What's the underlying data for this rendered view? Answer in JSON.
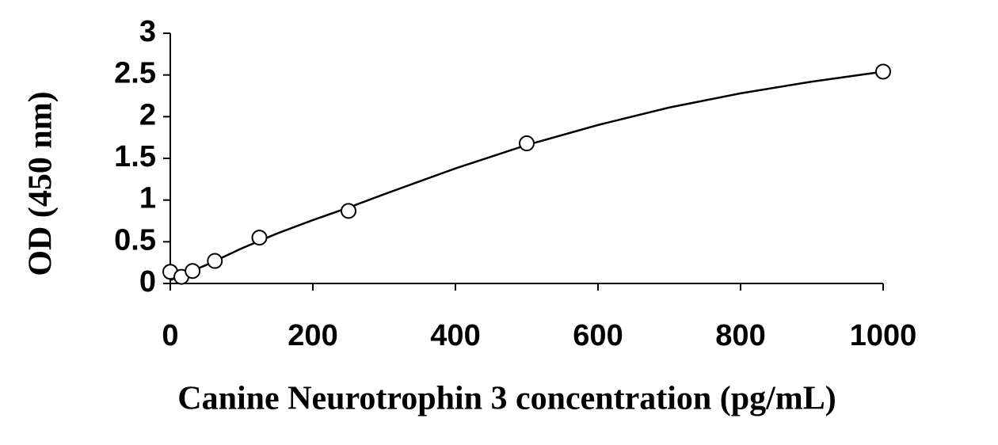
{
  "chart_data": {
    "type": "scatter",
    "x_label": "Canine Neurotrophin 3 concentration (pg/mL)",
    "y_label": "OD (450 nm)",
    "x": [
      0,
      15.6,
      31.25,
      62.5,
      125,
      250,
      500,
      1000
    ],
    "values": [
      0.14,
      0.08,
      0.15,
      0.27,
      0.55,
      0.87,
      1.68,
      2.54
    ],
    "fit_x": [
      0,
      50,
      100,
      150,
      200,
      250,
      300,
      400,
      500,
      600,
      700,
      800,
      900,
      1000
    ],
    "fit_values": [
      0.04,
      0.22,
      0.42,
      0.6,
      0.76,
      0.91,
      1.07,
      1.38,
      1.66,
      1.9,
      2.11,
      2.28,
      2.42,
      2.54
    ],
    "color": "#000000",
    "xlim": [
      0,
      1000
    ],
    "xticks": [
      0,
      200,
      400,
      600,
      800,
      1000
    ],
    "ylim": [
      0,
      3
    ],
    "yticks": [
      0,
      0.5,
      1,
      1.5,
      2,
      2.5,
      3
    ]
  }
}
